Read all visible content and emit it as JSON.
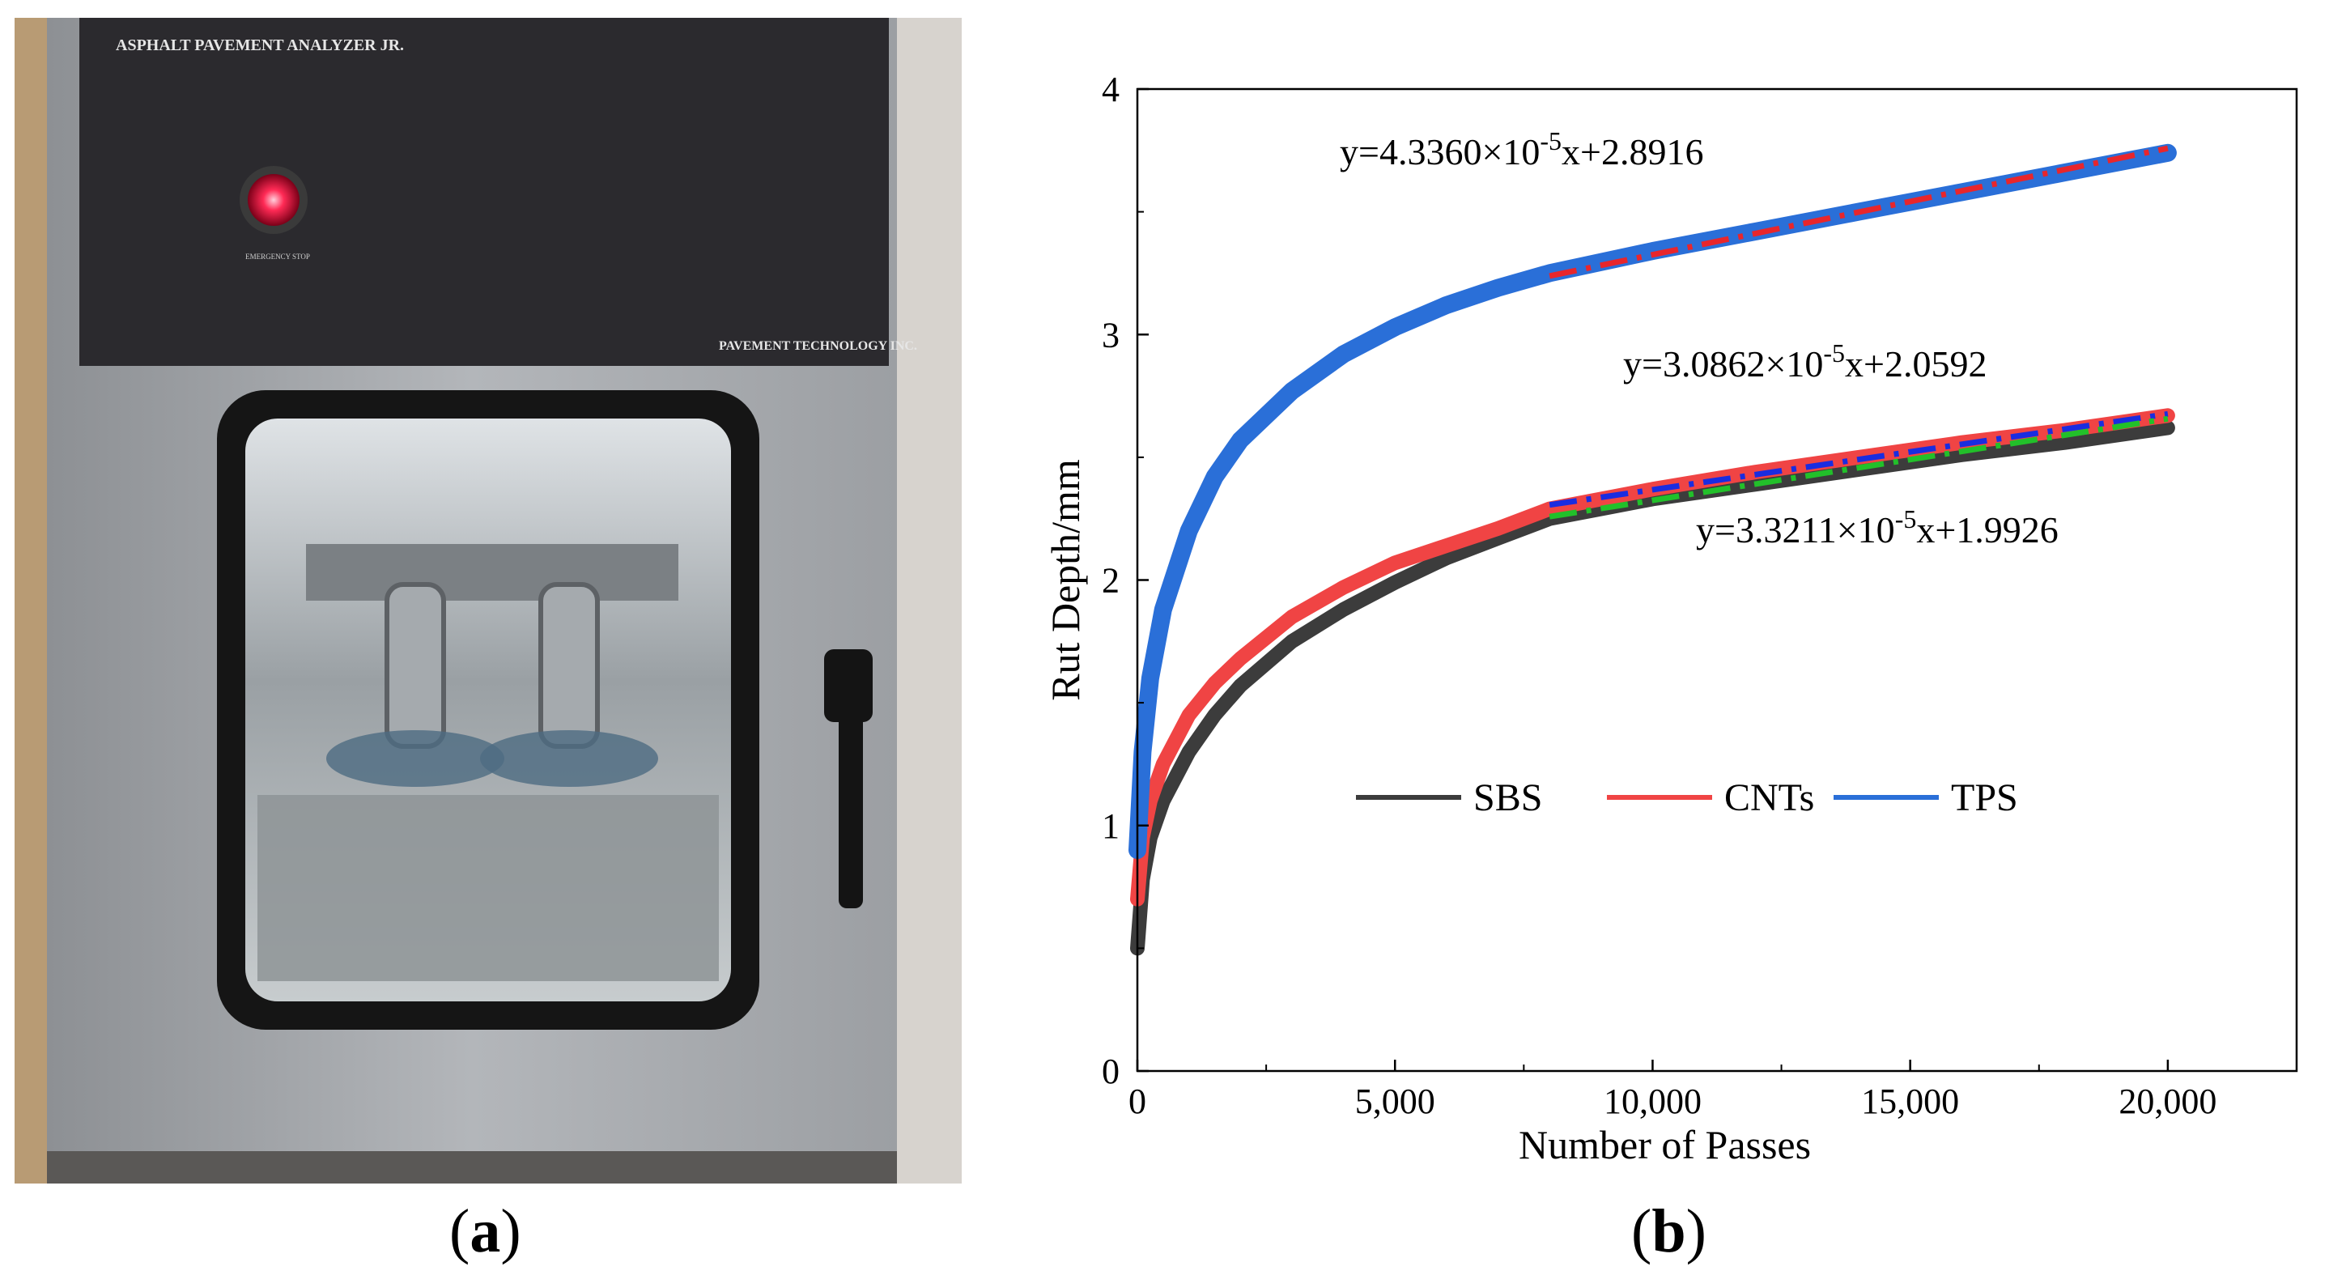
{
  "panels": {
    "a_open": "(",
    "a_letter": "a",
    "a_close": ")",
    "b_open": "(",
    "b_letter": "b",
    "b_close": ")"
  },
  "photo": {
    "device_title": "ASPHALT PAVEMENT ANALYZER JR.",
    "manufacturer": "PAVEMENT TECHNOLOGY INC.",
    "stop_label": "EMERGENCY STOP",
    "colors": {
      "cabinet": "#a9adb1",
      "panel": "#2b2a2e",
      "window_frame": "#151515",
      "lamp": "#ff2a55"
    }
  },
  "chart_data": {
    "type": "line",
    "xlabel": "Number of Passes",
    "ylabel": "Rut Depth/mm",
    "xlim": [
      0,
      22500
    ],
    "ylim": [
      0,
      4
    ],
    "xticks": [
      0,
      5000,
      10000,
      15000,
      20000
    ],
    "xtick_labels": [
      "0",
      "5,000",
      "10,000",
      "15,000",
      "20,000"
    ],
    "yticks": [
      0,
      1,
      2,
      3,
      4
    ],
    "ytick_labels": [
      "0",
      "1",
      "2",
      "3",
      "4"
    ],
    "grid": false,
    "legend_position": "bottom-center",
    "series": [
      {
        "name": "SBS",
        "color": "#3c3c3c",
        "x": [
          0,
          100,
          250,
          500,
          1000,
          1500,
          2000,
          3000,
          4000,
          5000,
          6000,
          7000,
          8000,
          10000,
          12000,
          14000,
          16000,
          18000,
          20000
        ],
        "y": [
          0.5,
          0.78,
          0.95,
          1.1,
          1.3,
          1.45,
          1.57,
          1.75,
          1.88,
          1.99,
          2.09,
          2.17,
          2.25,
          2.33,
          2.39,
          2.45,
          2.51,
          2.56,
          2.62
        ]
      },
      {
        "name": "CNTs",
        "color": "#f04444",
        "x": [
          0,
          100,
          250,
          500,
          1000,
          1500,
          2000,
          3000,
          4000,
          5000,
          6000,
          7000,
          8000,
          10000,
          12000,
          14000,
          16000,
          18000,
          20000
        ],
        "y": [
          0.7,
          0.95,
          1.1,
          1.25,
          1.45,
          1.58,
          1.68,
          1.85,
          1.97,
          2.07,
          2.14,
          2.21,
          2.29,
          2.37,
          2.44,
          2.5,
          2.56,
          2.61,
          2.67
        ]
      },
      {
        "name": "TPS",
        "color": "#2a6fd8",
        "x": [
          0,
          100,
          250,
          500,
          1000,
          1500,
          2000,
          3000,
          4000,
          5000,
          6000,
          7000,
          8000,
          10000,
          12000,
          14000,
          16000,
          18000,
          20000
        ],
        "y": [
          0.9,
          1.3,
          1.6,
          1.88,
          2.2,
          2.42,
          2.57,
          2.77,
          2.92,
          3.03,
          3.12,
          3.19,
          3.25,
          3.34,
          3.42,
          3.5,
          3.58,
          3.66,
          3.74
        ]
      }
    ],
    "fits": [
      {
        "label_prefix": "y=4.3360×10",
        "label_exp": "-5",
        "label_suffix": "x+2.8916",
        "slope": 4.336e-05,
        "intercept": 2.8916,
        "x_range": [
          8000,
          20000
        ],
        "color": "#e8262c",
        "dash": "dashdot"
      },
      {
        "label_prefix": "y=3.0862×10",
        "label_exp": "-5",
        "label_suffix": "x+2.0592",
        "slope": 3.0862e-05,
        "intercept": 2.0592,
        "x_range": [
          8000,
          20000
        ],
        "color": "#1a2ce0",
        "dash": "dashdot"
      },
      {
        "label_prefix": "y=3.3211×10",
        "label_exp": "-5",
        "label_suffix": "x+1.9926",
        "slope": 3.3211e-05,
        "intercept": 1.9926,
        "x_range": [
          8000,
          20000
        ],
        "color": "#22c02a",
        "dash": "dashdot"
      }
    ]
  }
}
